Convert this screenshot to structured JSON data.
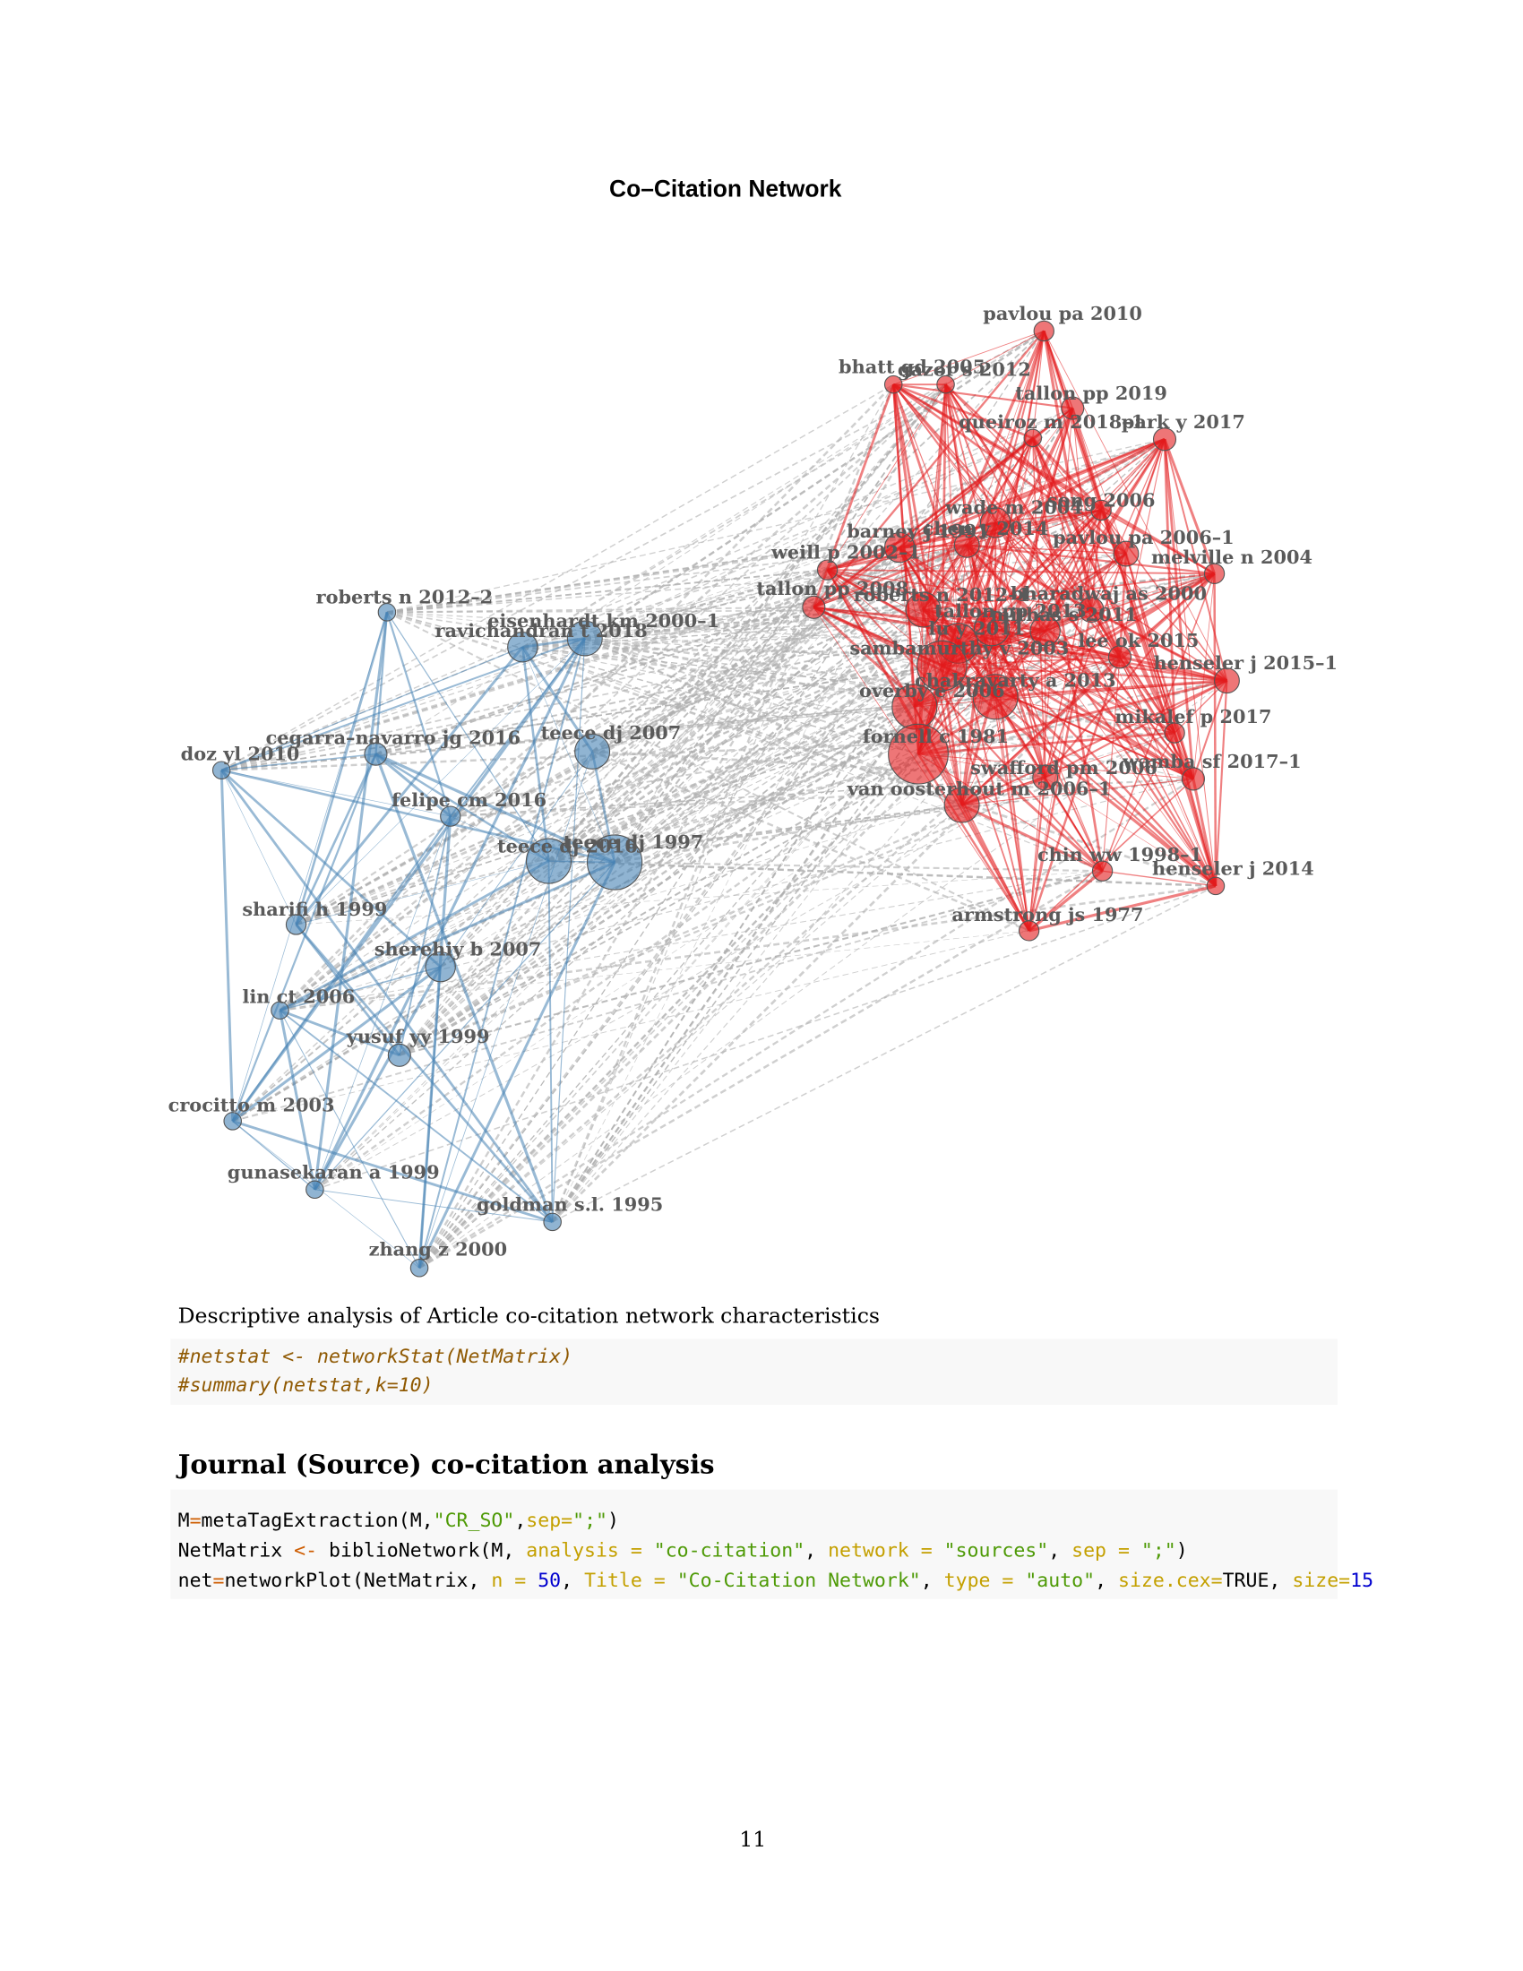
{
  "plot": {
    "title": "Co–Citation Network",
    "clusters": [
      {
        "color": "#4682b4",
        "nodes": [
          "roberts n 2012–2",
          "ravichandran t 2018",
          "eisenhardt km 2000–1",
          "cegarra–navarro jg 2016",
          "doz yl 2010",
          "teece dj 2007",
          "felipe cm 2016",
          "teece dj 2016",
          "teece dj 1997",
          "sharifi h 1999",
          "sherehiy b 2007",
          "lin ct 2006",
          "yusuf yy 1999",
          "crocitto m 2003",
          "gunasekaran a 1999",
          "goldman s.l. 1995",
          "zhang z 2000"
        ]
      },
      {
        "color": "#e31a1c",
        "nodes": [
          "pavlou pa 2010",
          "bhatt gd 2005",
          "gazor s 2012",
          "tallon pp 2019",
          "queiroz m 2018–1",
          "park y 2017",
          "wade m 2004",
          "song 2006",
          "barney j 1991",
          "chen y 2014",
          "pavlou pa 2006–1",
          "weill p 2002–1",
          "melville n 2004",
          "tallon pp 2008",
          "roberts n 2012–1",
          "bharadwaj as 2000",
          "tallon pp 2013",
          "lu y 2011",
          "mithas s 2011",
          "sambamurthy v 2003",
          "lee ok 2015",
          "henseler j 2015–1",
          "overby e 2006",
          "chakravarty a 2013",
          "mikalef p 2017",
          "fornell c 1981",
          "swafford pm 2006",
          "wamba sf 2017–1",
          "van oosterhout m 2006–1",
          "chin ww 1998–1",
          "henseler j 2014",
          "armstrong js 1977"
        ]
      }
    ]
  },
  "text": {
    "caption": "Descriptive analysis of Article co-citation network characteristics",
    "comment": [
      "#netstat <- networkStat(NetMatrix)",
      "#summary(netstat,k=10)"
    ],
    "heading": "Journal (Source) co-citation analysis",
    "code": [
      [
        "M",
        "=",
        "metaTagExtraction(M,",
        "\"CR_SO\"",
        ",",
        "sep=",
        "\";\"",
        ")"
      ],
      [
        "NetMatrix ",
        "<-",
        " biblioNetwork(M, ",
        "analysis = ",
        "\"co-citation\"",
        ", ",
        "network = ",
        "\"sources\"",
        ", ",
        "sep = ",
        "\";\"",
        ")"
      ],
      [
        "net",
        "=",
        "networkPlot(NetMatrix, ",
        "n = ",
        "50",
        ", ",
        "Title = ",
        "\"Co-Citation Network\"",
        ", ",
        "type = ",
        "\"auto\"",
        ", ",
        "size.cex=",
        "TRUE",
        ", ",
        "size=",
        "15"
      ]
    ],
    "page": "11"
  }
}
